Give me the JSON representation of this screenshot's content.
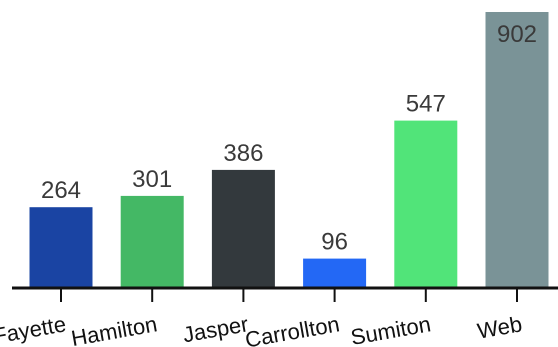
{
  "chart_data": {
    "type": "bar",
    "title": "",
    "xlabel": "",
    "ylabel": "",
    "categories": [
      "Fayette",
      "Hamilton",
      "Jasper",
      "Carrollton",
      "Sumiton",
      "Web"
    ],
    "values": [
      264,
      301,
      386,
      96,
      547,
      902
    ],
    "colors": [
      "#1a44a3",
      "#44b865",
      "#33393d",
      "#2368f5",
      "#51e479",
      "#7a9397"
    ],
    "ylim": [
      0,
      902
    ],
    "grid": false,
    "legend": "none",
    "tick_label_rotation_deg": -10
  }
}
